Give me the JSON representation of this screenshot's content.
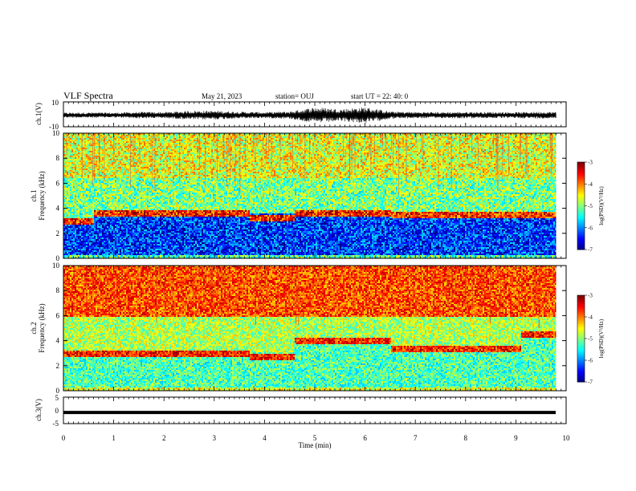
{
  "header": {
    "title": "VLF Spectra",
    "date": "May 21, 2023",
    "station": "station= OUJ",
    "start": "start  UT  =   22: 40: 0"
  },
  "chart_data": [
    {
      "type": "line",
      "name": "ch1_waveform",
      "ylabel": "ch.1(V)",
      "ylim": [
        -10,
        10
      ],
      "yticks": [
        "10",
        "-10"
      ],
      "xlim": [
        0,
        10
      ],
      "envelope": [
        {
          "t": 0.0,
          "amp": 2.0
        },
        {
          "t": 0.5,
          "amp": 2.2
        },
        {
          "t": 1.0,
          "amp": 2.0
        },
        {
          "t": 1.5,
          "amp": 2.6
        },
        {
          "t": 2.0,
          "amp": 2.5
        },
        {
          "t": 2.5,
          "amp": 3.5
        },
        {
          "t": 3.0,
          "amp": 3.5
        },
        {
          "t": 3.5,
          "amp": 2.8
        },
        {
          "t": 4.0,
          "amp": 2.4
        },
        {
          "t": 4.5,
          "amp": 3.0
        },
        {
          "t": 5.0,
          "amp": 6.5
        },
        {
          "t": 5.5,
          "amp": 5.0
        },
        {
          "t": 6.0,
          "amp": 6.5
        },
        {
          "t": 6.5,
          "amp": 3.0
        },
        {
          "t": 7.0,
          "amp": 2.6
        },
        {
          "t": 7.5,
          "amp": 2.4
        },
        {
          "t": 8.0,
          "amp": 2.6
        },
        {
          "t": 8.5,
          "amp": 2.5
        },
        {
          "t": 9.0,
          "amp": 2.4
        },
        {
          "t": 9.5,
          "amp": 2.8
        },
        {
          "t": 9.8,
          "amp": 2.5
        }
      ]
    },
    {
      "type": "heatmap",
      "name": "ch1_spectrogram",
      "ylabel": "ch.1\nFrequency  (kHz)",
      "ylim": [
        0,
        10
      ],
      "xlim": [
        0,
        9.8
      ],
      "yticks": [
        "0",
        "2",
        "4",
        "6",
        "8",
        "10"
      ],
      "colorbar": {
        "label": "log(PSD)(V²/Hz)",
        "range": [
          -7,
          -3
        ],
        "ticks": [
          "-3",
          "-4",
          "-5",
          "-6",
          "-7"
        ]
      },
      "segments": [
        {
          "t0": 0.0,
          "t1": 0.6,
          "band_top_khz": 3.0
        },
        {
          "t0": 0.6,
          "t1": 3.7,
          "band_top_khz": 3.6
        },
        {
          "t0": 3.7,
          "t1": 4.6,
          "band_top_khz": 3.3
        },
        {
          "t0": 4.6,
          "t1": 6.5,
          "band_top_khz": 3.6
        },
        {
          "t0": 6.5,
          "t1": 9.1,
          "band_top_khz": 3.5
        },
        {
          "t0": 9.1,
          "t1": 9.8,
          "band_top_khz": 3.5
        }
      ],
      "log_psd_bands": [
        {
          "f_lo": 6.5,
          "f_hi": 10.0,
          "value": -4.6
        },
        {
          "f_lo": 3.6,
          "f_hi": 6.5,
          "value": -5.0
        },
        {
          "f_lo": 0.3,
          "f_hi": 3.6,
          "value": -6.3
        },
        {
          "f_lo": 0.0,
          "f_hi": 0.3,
          "value": -5.2
        }
      ]
    },
    {
      "type": "heatmap",
      "name": "ch2_spectrogram",
      "ylabel": "ch.2\nFrequency  (kHz)",
      "ylim": [
        0,
        10
      ],
      "xlim": [
        0,
        9.8
      ],
      "yticks": [
        "0",
        "2",
        "4",
        "6",
        "8",
        "10"
      ],
      "colorbar": {
        "label": "log(PSD)(V²/Hz)",
        "range": [
          -7,
          -3
        ],
        "ticks": [
          "-3",
          "-4",
          "-5",
          "-6",
          "-7"
        ]
      },
      "segments": [
        {
          "t0": 0.0,
          "t1": 0.6,
          "band_top_khz": 3.0
        },
        {
          "t0": 0.6,
          "t1": 3.7,
          "band_top_khz": 3.0
        },
        {
          "t0": 3.7,
          "t1": 4.6,
          "band_top_khz": 2.8
        },
        {
          "t0": 4.6,
          "t1": 6.5,
          "band_top_khz": 4.0
        },
        {
          "t0": 6.5,
          "t1": 9.1,
          "band_top_khz": 3.4
        },
        {
          "t0": 9.1,
          "t1": 9.8,
          "band_top_khz": 4.5
        }
      ],
      "log_psd_bands": [
        {
          "f_lo": 6.0,
          "f_hi": 10.0,
          "value": -3.8
        },
        {
          "f_lo": 4.0,
          "f_hi": 6.0,
          "value": -4.8
        },
        {
          "f_lo": 0.5,
          "f_hi": 4.0,
          "value": -5.2
        },
        {
          "f_lo": 0.0,
          "f_hi": 0.5,
          "value": -4.6
        }
      ]
    },
    {
      "type": "line",
      "name": "ch3_waveform",
      "ylabel": "ch.3(V)",
      "ylim": [
        -5,
        5
      ],
      "yticks": [
        "5",
        "0",
        "-5"
      ],
      "xlim": [
        0,
        10
      ],
      "constant_value": -0.8,
      "xlabel": "Time  (min)",
      "xticks": [
        "0",
        "1",
        "2",
        "3",
        "4",
        "5",
        "6",
        "7",
        "8",
        "9",
        "10"
      ]
    }
  ]
}
